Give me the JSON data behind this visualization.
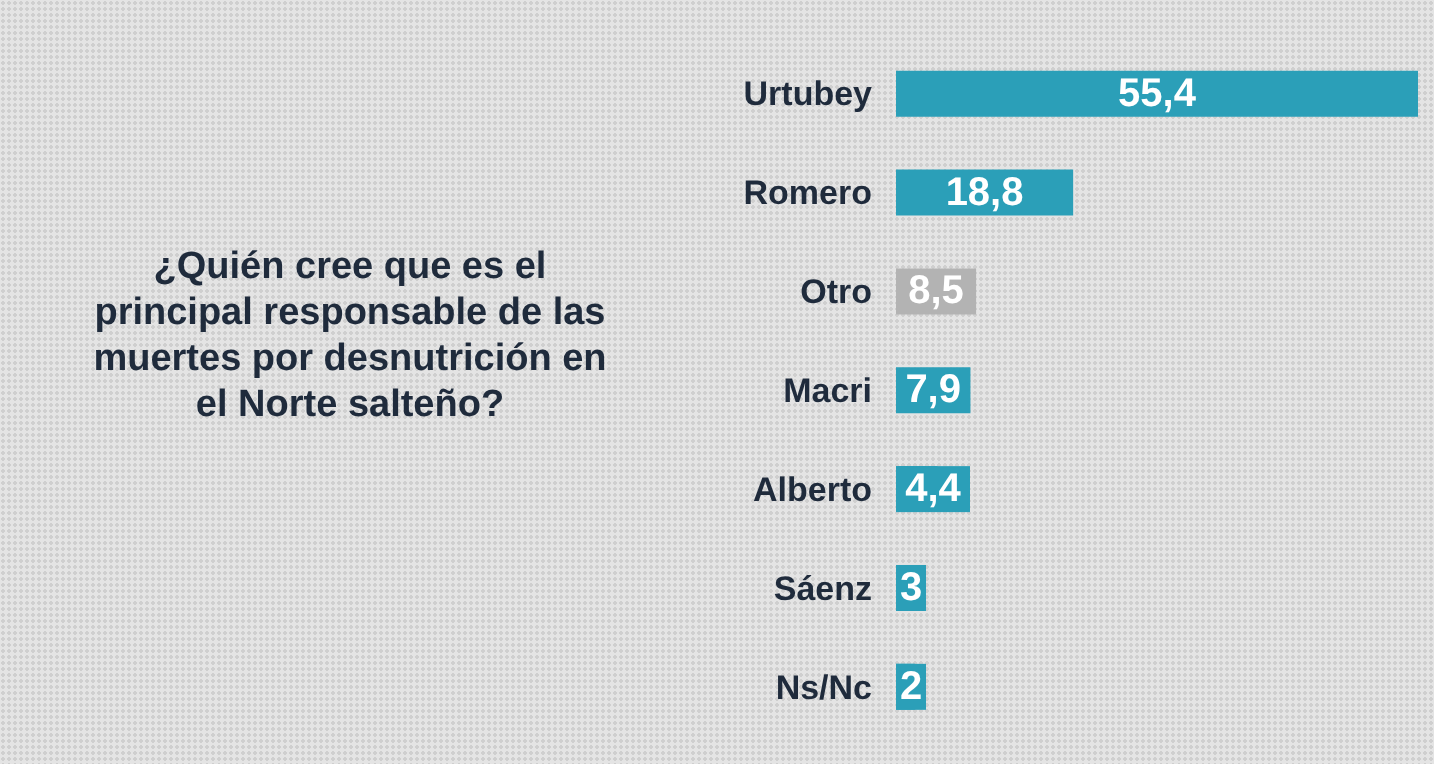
{
  "chart_data": {
    "type": "bar",
    "orientation": "horizontal",
    "title": "¿Quién cree que es el principal responsable de las muertes por desnutrición en el Norte salteño?",
    "categories": [
      "Urtubey",
      "Romero",
      "Otro",
      "Macri",
      "Alberto",
      "Sáenz",
      "Ns/Nc"
    ],
    "values": [
      55.4,
      18.8,
      8.5,
      7.9,
      4.4,
      3,
      2
    ],
    "value_labels": [
      "55,4",
      "18,8",
      "8,5",
      "7,9",
      "4,4",
      "3",
      "2"
    ],
    "colors": [
      "#2b9fb8",
      "#2b9fb8",
      "#b3b3b3",
      "#2b9fb8",
      "#2b9fb8",
      "#2b9fb8",
      "#2b9fb8"
    ],
    "grid": false,
    "legend": false
  }
}
